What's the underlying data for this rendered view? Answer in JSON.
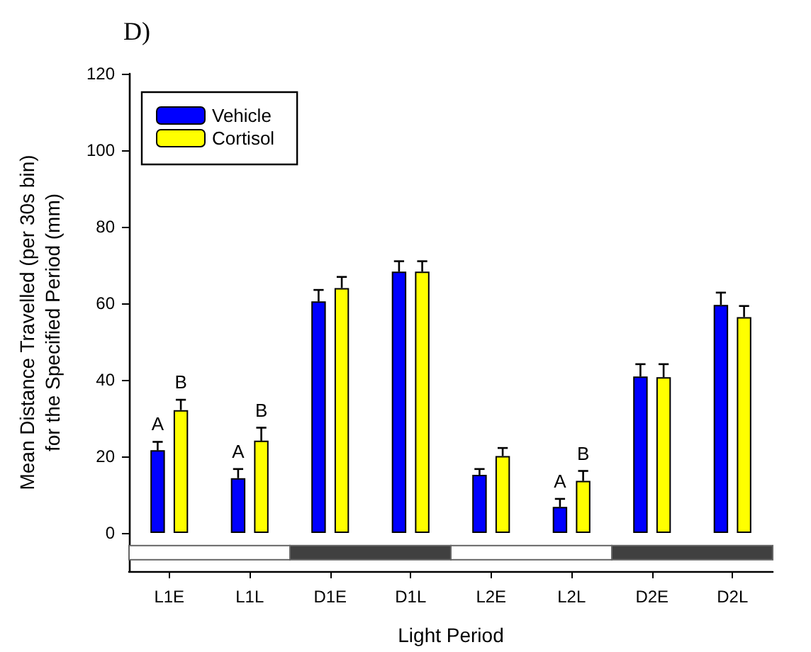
{
  "chart_data": {
    "type": "bar",
    "title": "D)",
    "xlabel": "Light Period",
    "ylabel": "Mean Distance Travelled (per 30s bin)\nfor the Specified Period (mm)",
    "categories": [
      "L1E",
      "L1L",
      "D1E",
      "D1L",
      "L2E",
      "L2L",
      "D2E",
      "D2L"
    ],
    "series": [
      {
        "name": "Vehicle",
        "color": "#0000ff",
        "values": [
          21.6,
          14.3,
          60.5,
          68.3,
          15.2,
          6.8,
          40.9,
          59.6
        ],
        "errors": [
          2.2,
          2.4,
          3,
          2.7,
          1.5,
          2.1,
          3.2,
          3.2
        ]
      },
      {
        "name": "Cortisol",
        "color": "#ffff00",
        "values": [
          32.1,
          24.1,
          64,
          68.3,
          20.1,
          13.6,
          40.7,
          56.4
        ],
        "errors": [
          2.7,
          3.4,
          2.9,
          2.7,
          2.1,
          2.6,
          3.4,
          2.9
        ]
      }
    ],
    "ylim": [
      -10,
      120
    ],
    "yticks": [
      0,
      20,
      40,
      60,
      80,
      100,
      120
    ],
    "grid": false,
    "legend": "top left",
    "annotations": [
      {
        "text": "A",
        "x": "L1E",
        "y": 23.8
      },
      {
        "text": "B",
        "x": "L1E",
        "y": 34.8
      },
      {
        "text": "A",
        "x": "L1L",
        "y": 16.7
      },
      {
        "text": "B",
        "x": "L1L",
        "y": 27.5
      },
      {
        "text": "A",
        "x": "L2L",
        "y": 8.9
      },
      {
        "text": "B",
        "x": "L2L",
        "y": 16.2
      }
    ]
  }
}
